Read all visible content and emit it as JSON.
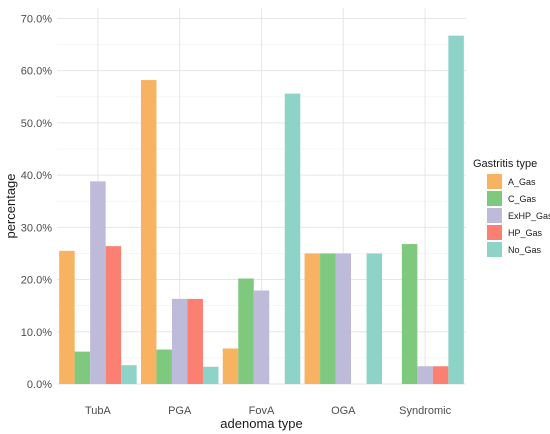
{
  "chart_data": {
    "type": "bar",
    "categories": [
      "TubA",
      "PGA",
      "FovA",
      "OGA",
      "Syndromic"
    ],
    "series": [
      {
        "name": "A_Gas",
        "color": "#F7B262",
        "values": [
          25.5,
          58.2,
          6.8,
          25.0,
          0
        ]
      },
      {
        "name": "C_Gas",
        "color": "#7FC97F",
        "values": [
          6.2,
          6.6,
          20.2,
          25.0,
          26.8
        ]
      },
      {
        "name": "ExHP_Gas",
        "color": "#BEBADA",
        "values": [
          38.8,
          16.3,
          17.9,
          25.0,
          3.4
        ]
      },
      {
        "name": "HP_Gas",
        "color": "#FB8072",
        "values": [
          26.4,
          16.3,
          0,
          0,
          3.4
        ]
      },
      {
        "name": "No_Gas",
        "color": "#8DD3C7",
        "values": [
          3.6,
          3.3,
          55.6,
          25.0,
          66.7
        ]
      }
    ],
    "xlabel": "adenoma type",
    "ylabel": "percentage",
    "ylim": [
      0,
      72
    ],
    "yticks": [
      0,
      10,
      20,
      30,
      40,
      50,
      60,
      70
    ],
    "ytick_labels": [
      "0.0%",
      "10.0%",
      "20.0%",
      "30.0%",
      "40.0%",
      "50.0%",
      "60.0%",
      "70.0%"
    ],
    "legend_title": "Gastritis type",
    "legend_position": "right",
    "grid": true
  }
}
